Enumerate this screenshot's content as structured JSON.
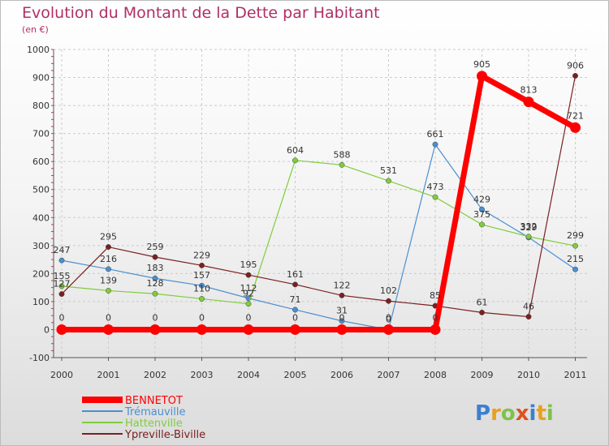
{
  "header": {
    "title": "Evolution du Montant de la Dette par Habitant",
    "subtitle": "(en €)"
  },
  "logo_text": "Proxiti",
  "colors": {
    "title": "#b02f66",
    "grid": "#cccccc",
    "axis": "#555555"
  },
  "chart_data": {
    "type": "line",
    "x": [
      "2000",
      "2001",
      "2002",
      "2003",
      "2004",
      "2005",
      "2006",
      "2007",
      "2008",
      "2009",
      "2010",
      "2011"
    ],
    "ylim": [
      -100,
      1000
    ],
    "yticks": [
      -100,
      0,
      100,
      200,
      300,
      400,
      500,
      600,
      700,
      800,
      900,
      1000
    ],
    "grid": "horizontal dashed",
    "legend_position": "bottom-left",
    "series": [
      {
        "name": "Trémauville",
        "color": "#4a8fd0",
        "values": [
          247,
          216,
          183,
          157,
          112,
          71,
          31,
          0,
          661,
          429,
          329,
          215
        ],
        "labels": [
          "247",
          "216",
          "183",
          "157",
          "112",
          "71",
          "31",
          "0",
          "661",
          "429",
          "329",
          "215"
        ]
      },
      {
        "name": "Hattenville",
        "color": "#7fcd3a",
        "values": [
          155,
          139,
          128,
          110,
          92,
          604,
          588,
          531,
          473,
          375,
          332,
          299
        ],
        "labels": [
          "155",
          "139",
          "128",
          "110",
          "92",
          "604",
          "588",
          "531",
          "473",
          "375",
          "332",
          "299"
        ]
      },
      {
        "name": "Ypreville-Biville",
        "color": "#7a2020",
        "values": [
          127,
          295,
          259,
          229,
          195,
          161,
          122,
          102,
          85,
          61,
          46,
          906
        ],
        "labels": [
          "127",
          "295",
          "259",
          "229",
          "195",
          "161",
          "122",
          "102",
          "85",
          "61",
          "46",
          "906"
        ]
      },
      {
        "name": "BENNETOT",
        "color": "#ff0000",
        "values": [
          0,
          0,
          0,
          0,
          0,
          0,
          0,
          0,
          0,
          905,
          813,
          721
        ],
        "labels": [
          "0",
          "0",
          "0",
          "0",
          "0",
          "0",
          "0",
          "0",
          "0",
          "905",
          "813",
          "721"
        ]
      }
    ]
  }
}
